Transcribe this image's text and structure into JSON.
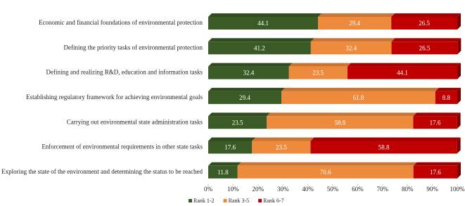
{
  "chart_data": {
    "type": "stacked-bar-horizontal",
    "categories": [
      "Economic and financial foundations of environmental protection",
      "Defining the priority tasks of environmental protection",
      "Defining and realizing R&D, education and information tasks",
      "Establishing regulatory framework for achieving environmental goals",
      "Carrying out environmental state administration tasks",
      "Enforcement of environmental requirements in other state tasks",
      "Exploring the state of the environment and determining the status to be reached"
    ],
    "series": [
      {
        "name": "Rank 1-2",
        "color": "#3a5a26",
        "values": [
          44.1,
          41.2,
          32.4,
          29.4,
          23.5,
          17.6,
          11.8
        ]
      },
      {
        "name": "Rank 3-5",
        "color": "#ee8a3c",
        "values": [
          29.4,
          32.4,
          23.5,
          61.8,
          58.8,
          23.5,
          70.6
        ]
      },
      {
        "name": "Rank 6-7",
        "color": "#c00000",
        "values": [
          26.5,
          26.5,
          44.1,
          8.8,
          17.6,
          58.8,
          17.6
        ]
      }
    ],
    "xlim": [
      0,
      100
    ],
    "xticks": [
      {
        "value": 0,
        "label": "0%"
      },
      {
        "value": 10,
        "label": "10%"
      },
      {
        "value": 20,
        "label": "20%"
      },
      {
        "value": 30,
        "label": "30%"
      },
      {
        "value": 40,
        "label": "40%"
      },
      {
        "value": 50,
        "label": "50%"
      },
      {
        "value": 60,
        "label": "60%"
      },
      {
        "value": 70,
        "label": "70%"
      },
      {
        "value": 80,
        "label": "80%"
      },
      {
        "value": 90,
        "label": "90%"
      },
      {
        "value": 100,
        "label": "100%"
      }
    ],
    "legend": "bottom"
  }
}
